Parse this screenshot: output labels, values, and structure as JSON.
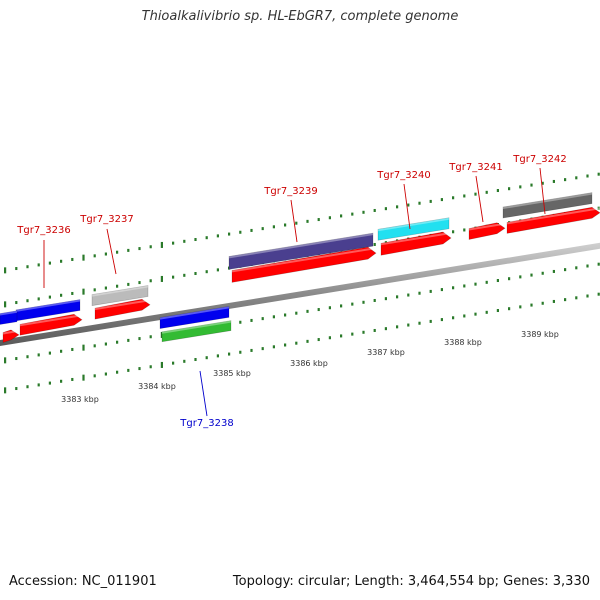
{
  "title": "Thioalkalivibrio sp. HL-EbGR7, complete genome",
  "footer": {
    "accession": "Accession: NC_011901",
    "topology": "Topology: circular; Length: 3,464,554 bp; Genes: 3,330"
  },
  "colors": {
    "forward_label": "#cc0000",
    "reverse_label": "#0000cc",
    "tick": "#2a7a2a",
    "backbone": "#8a8a8a",
    "cds": "#ff0000"
  },
  "ticks": [
    "3383 kbp",
    "3384 kbp",
    "3385 kbp",
    "3386 kbp",
    "3387 kbp",
    "3388 kbp",
    "3389 kbp"
  ],
  "genes": [
    {
      "label": "Tgr7_3236",
      "strand": "forward",
      "color": "#0000ee"
    },
    {
      "label": "Tgr7_3237",
      "strand": "forward",
      "color": "#bbbbbb"
    },
    {
      "label": "Tgr7_3238",
      "strand": "reverse",
      "color": "#0000ee"
    },
    {
      "label": "Tgr7_3239",
      "strand": "forward",
      "color": "#4a3f8f"
    },
    {
      "label": "Tgr7_3240",
      "strand": "forward",
      "color": "#22e0f0"
    },
    {
      "label": "Tgr7_3241",
      "strand": "forward",
      "color": "#ff0000"
    },
    {
      "label": "Tgr7_3242",
      "strand": "forward",
      "color": "#666666"
    }
  ]
}
